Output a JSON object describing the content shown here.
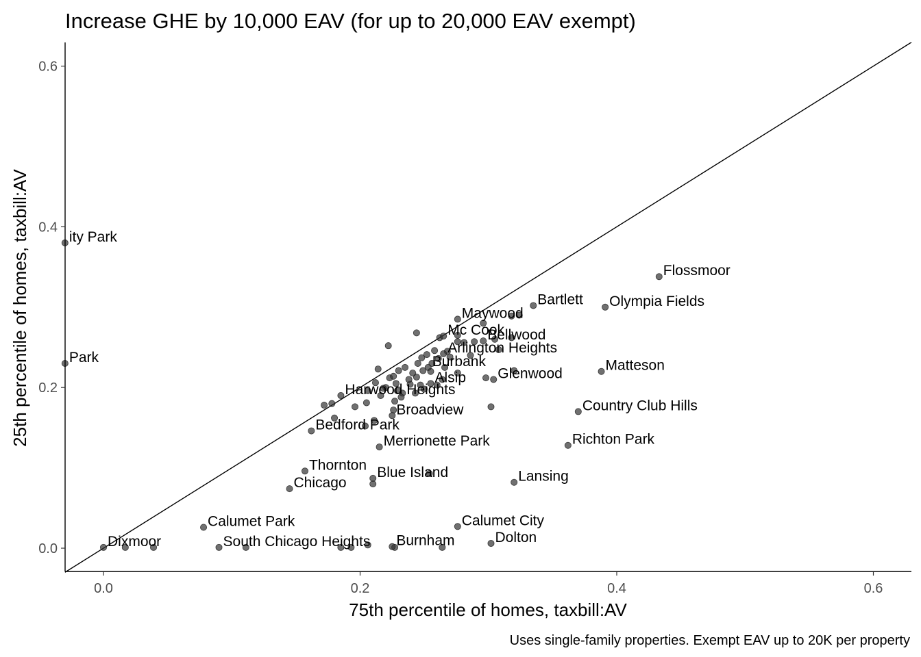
{
  "chart_data": {
    "type": "scatter",
    "title": "Increase GHE by 10,000 EAV (for up to 20,000 EAV exempt)",
    "xlabel": "75th percentile of homes, taxbill:AV",
    "ylabel": "25th percentile of homes, taxbill:AV",
    "caption": "Uses single-family properties. Exempt EAV up to 20K per property",
    "xlim": [
      -0.03,
      0.63
    ],
    "ylim": [
      -0.03,
      0.63
    ],
    "x_ticks": [
      0.0,
      0.2,
      0.4,
      0.6
    ],
    "x_tick_labels": [
      "0.0",
      "0.2",
      "0.4",
      "0.6"
    ],
    "y_ticks": [
      0.0,
      0.2,
      0.4,
      0.6
    ],
    "y_tick_labels": [
      "0.0",
      "0.2",
      "0.4",
      "0.6"
    ],
    "reference_line": "y = x",
    "grid": false,
    "point_color": "#333333",
    "point_opacity": 0.7,
    "labeled_points": [
      {
        "label": "Flossmoor",
        "x": 0.433,
        "y": 0.338
      },
      {
        "label": "Olympia Fields",
        "x": 0.391,
        "y": 0.3
      },
      {
        "label": "Bartlett",
        "x": 0.335,
        "y": 0.302
      },
      {
        "label": "Maywood",
        "x": 0.276,
        "y": 0.285
      },
      {
        "label": "Matteson",
        "x": 0.388,
        "y": 0.22
      },
      {
        "label": "Mc Cook",
        "x": 0.265,
        "y": 0.264
      },
      {
        "label": "Bellwood",
        "x": 0.296,
        "y": 0.258
      },
      {
        "label": "Arlington Heights",
        "x": 0.265,
        "y": 0.242
      },
      {
        "label": "Burbank",
        "x": 0.253,
        "y": 0.225
      },
      {
        "label": "Glenwood",
        "x": 0.304,
        "y": 0.21
      },
      {
        "label": "Alsip",
        "x": 0.255,
        "y": 0.205
      },
      {
        "label": "Country Club Hills",
        "x": 0.37,
        "y": 0.17
      },
      {
        "label": "Harwood Heights",
        "x": 0.185,
        "y": 0.19
      },
      {
        "label": "Broadview",
        "x": 0.225,
        "y": 0.165
      },
      {
        "label": "Bedford Park",
        "x": 0.162,
        "y": 0.146
      },
      {
        "label": "Richton Park",
        "x": 0.362,
        "y": 0.128
      },
      {
        "label": "Merrionette Park",
        "x": 0.215,
        "y": 0.126
      },
      {
        "label": "Thornton",
        "x": 0.157,
        "y": 0.096
      },
      {
        "label": "Blue Island",
        "x": 0.21,
        "y": 0.087
      },
      {
        "label": "Lansing",
        "x": 0.32,
        "y": 0.082
      },
      {
        "label": "Chicago",
        "x": 0.145,
        "y": 0.074
      },
      {
        "label": "Calumet Park",
        "x": 0.078,
        "y": 0.026
      },
      {
        "label": "Calumet City",
        "x": 0.276,
        "y": 0.027
      },
      {
        "label": "Dolton",
        "x": 0.302,
        "y": 0.006
      },
      {
        "label": "Dixmoor",
        "x": 0.0,
        "y": 0.001
      },
      {
        "label": "South Chicago Heights",
        "x": 0.09,
        "y": 0.001
      },
      {
        "label": "Burnham",
        "x": 0.225,
        "y": 0.002
      },
      {
        "label": "ity Park",
        "x": -0.03,
        "y": 0.38
      },
      {
        "label": "Park",
        "x": -0.03,
        "y": 0.23
      }
    ],
    "unlabeled_points": [
      {
        "x": 0.017,
        "y": 0.001
      },
      {
        "x": 0.039,
        "y": 0.001
      },
      {
        "x": 0.111,
        "y": 0.001
      },
      {
        "x": 0.185,
        "y": 0.001
      },
      {
        "x": 0.193,
        "y": 0.001
      },
      {
        "x": 0.206,
        "y": 0.004
      },
      {
        "x": 0.227,
        "y": 0.001
      },
      {
        "x": 0.264,
        "y": 0.001
      },
      {
        "x": 0.254,
        "y": 0.093
      },
      {
        "x": 0.21,
        "y": 0.08
      },
      {
        "x": 0.302,
        "y": 0.176
      },
      {
        "x": 0.178,
        "y": 0.18
      },
      {
        "x": 0.172,
        "y": 0.178
      },
      {
        "x": 0.196,
        "y": 0.176
      },
      {
        "x": 0.18,
        "y": 0.162
      },
      {
        "x": 0.204,
        "y": 0.152
      },
      {
        "x": 0.211,
        "y": 0.159
      },
      {
        "x": 0.226,
        "y": 0.172
      },
      {
        "x": 0.206,
        "y": 0.196
      },
      {
        "x": 0.212,
        "y": 0.206
      },
      {
        "x": 0.216,
        "y": 0.19
      },
      {
        "x": 0.22,
        "y": 0.2
      },
      {
        "x": 0.223,
        "y": 0.212
      },
      {
        "x": 0.228,
        "y": 0.205
      },
      {
        "x": 0.229,
        "y": 0.196
      },
      {
        "x": 0.233,
        "y": 0.193
      },
      {
        "x": 0.235,
        "y": 0.225
      },
      {
        "x": 0.239,
        "y": 0.204
      },
      {
        "x": 0.243,
        "y": 0.193
      },
      {
        "x": 0.244,
        "y": 0.213
      },
      {
        "x": 0.245,
        "y": 0.23
      },
      {
        "x": 0.247,
        "y": 0.203
      },
      {
        "x": 0.25,
        "y": 0.198
      },
      {
        "x": 0.214,
        "y": 0.223
      },
      {
        "x": 0.226,
        "y": 0.214
      },
      {
        "x": 0.23,
        "y": 0.221
      },
      {
        "x": 0.241,
        "y": 0.218
      },
      {
        "x": 0.248,
        "y": 0.237
      },
      {
        "x": 0.252,
        "y": 0.241
      },
      {
        "x": 0.256,
        "y": 0.23
      },
      {
        "x": 0.258,
        "y": 0.246
      },
      {
        "x": 0.261,
        "y": 0.236
      },
      {
        "x": 0.266,
        "y": 0.225
      },
      {
        "x": 0.268,
        "y": 0.245
      },
      {
        "x": 0.27,
        "y": 0.238
      },
      {
        "x": 0.276,
        "y": 0.218
      },
      {
        "x": 0.276,
        "y": 0.257
      },
      {
        "x": 0.276,
        "y": 0.265
      },
      {
        "x": 0.281,
        "y": 0.256
      },
      {
        "x": 0.286,
        "y": 0.24
      },
      {
        "x": 0.289,
        "y": 0.257
      },
      {
        "x": 0.298,
        "y": 0.212
      },
      {
        "x": 0.296,
        "y": 0.28
      },
      {
        "x": 0.305,
        "y": 0.26
      },
      {
        "x": 0.308,
        "y": 0.247
      },
      {
        "x": 0.318,
        "y": 0.262
      },
      {
        "x": 0.32,
        "y": 0.221
      },
      {
        "x": 0.324,
        "y": 0.29
      },
      {
        "x": 0.318,
        "y": 0.289
      },
      {
        "x": 0.244,
        "y": 0.268
      },
      {
        "x": 0.222,
        "y": 0.252
      },
      {
        "x": 0.262,
        "y": 0.262
      },
      {
        "x": 0.264,
        "y": 0.21
      },
      {
        "x": 0.26,
        "y": 0.203
      },
      {
        "x": 0.227,
        "y": 0.183
      },
      {
        "x": 0.205,
        "y": 0.181
      },
      {
        "x": 0.232,
        "y": 0.188
      },
      {
        "x": 0.238,
        "y": 0.21
      },
      {
        "x": 0.218,
        "y": 0.199
      },
      {
        "x": 0.249,
        "y": 0.221
      },
      {
        "x": 0.255,
        "y": 0.22
      }
    ]
  }
}
